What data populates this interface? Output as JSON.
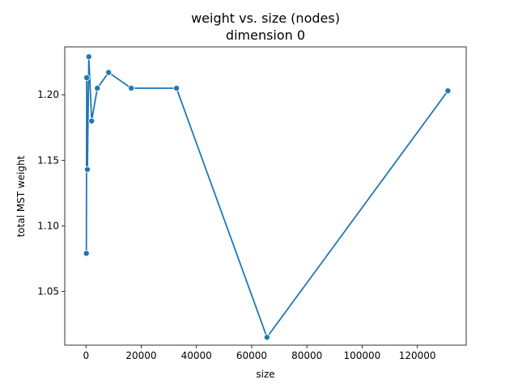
{
  "chart_data": {
    "type": "line",
    "title": "weight vs. size (nodes)",
    "subtitle": "dimension 0",
    "xlabel": "size",
    "ylabel": "total MST weight",
    "xlim": [
      -7700,
      137700
    ],
    "ylim": [
      1.009,
      1.2365
    ],
    "xticks": [
      0,
      20000,
      40000,
      60000,
      80000,
      100000,
      120000
    ],
    "xtick_labels": [
      "0",
      "20000",
      "40000",
      "60000",
      "80000",
      "100000",
      "120000"
    ],
    "yticks": [
      1.05,
      1.1,
      1.15,
      1.2
    ],
    "ytick_labels": [
      "1.05",
      "1.10",
      "1.15",
      "1.20"
    ],
    "grid": false,
    "series": [
      {
        "color": "#1f77b4",
        "marker": "circle",
        "x": [
          128,
          256,
          512,
          1024,
          2048,
          4096,
          8192,
          16384,
          32768,
          65536,
          131072
        ],
        "y": [
          1.079,
          1.213,
          1.143,
          1.229,
          1.18,
          1.205,
          1.217,
          1.205,
          1.205,
          1.015,
          1.203
        ]
      }
    ]
  }
}
